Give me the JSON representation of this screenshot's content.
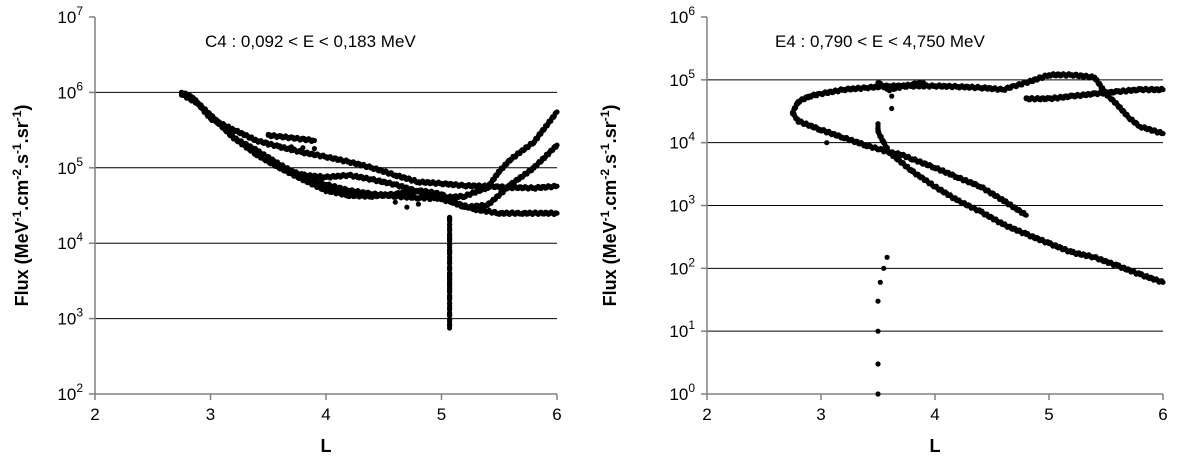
{
  "chart_data": [
    {
      "type": "scatter",
      "annotation": "C4 : 0,092 < E < 0,183 MeV",
      "xlabel": "L",
      "ylabel": "Flux (MeV",
      "ylabel_parts": [
        "Flux (MeV",
        "-1",
        ".cm",
        "-2",
        ".s",
        "-1",
        ".sr",
        "-1",
        ")"
      ],
      "xlim": [
        2,
        6
      ],
      "ylim_exp": [
        2,
        7
      ],
      "y_scale": "log",
      "grid": "horizontal",
      "xticks": [
        "2",
        "3",
        "4",
        "5",
        "6"
      ],
      "yticks": [
        {
          "base": "10",
          "exp": "2"
        },
        {
          "base": "10",
          "exp": "3"
        },
        {
          "base": "10",
          "exp": "4"
        },
        {
          "base": "10",
          "exp": "5"
        },
        {
          "base": "10",
          "exp": "6"
        },
        {
          "base": "10",
          "exp": "7"
        }
      ],
      "series": [
        {
          "points": [
            [
              2.75,
              1000000
            ],
            [
              2.85,
              850000
            ],
            [
              3.0,
              450000
            ],
            [
              3.2,
              320000
            ],
            [
              3.4,
              230000
            ],
            [
              3.6,
              190000
            ],
            [
              3.8,
              160000
            ],
            [
              4.0,
              140000
            ],
            [
              4.2,
              120000
            ],
            [
              4.4,
              100000
            ],
            [
              4.6,
              80000
            ],
            [
              4.8,
              65000
            ],
            [
              5.0,
              62000
            ],
            [
              5.2,
              58000
            ],
            [
              5.4,
              57000
            ],
            [
              5.6,
              55000
            ],
            [
              5.8,
              54000
            ],
            [
              6.0,
              57000
            ]
          ]
        },
        {
          "points": [
            [
              2.75,
              950000
            ],
            [
              2.9,
              700000
            ],
            [
              3.0,
              500000
            ],
            [
              3.2,
              250000
            ],
            [
              3.4,
              170000
            ],
            [
              3.6,
              110000
            ],
            [
              3.8,
              75000
            ],
            [
              4.0,
              60000
            ],
            [
              4.2,
              50000
            ],
            [
              4.4,
              45000
            ],
            [
              4.6,
              42000
            ],
            [
              4.8,
              40000
            ],
            [
              5.0,
              40000
            ],
            [
              5.2,
              42000
            ],
            [
              5.4,
              55000
            ],
            [
              5.5,
              90000
            ],
            [
              5.6,
              130000
            ],
            [
              5.8,
              220000
            ],
            [
              6.0,
              550000
            ]
          ]
        },
        {
          "points": [
            [
              3.0,
              500000
            ],
            [
              3.2,
              250000
            ],
            [
              3.4,
              150000
            ],
            [
              3.6,
              100000
            ],
            [
              3.8,
              70000
            ],
            [
              4.0,
              50000
            ],
            [
              4.2,
              43000
            ],
            [
              4.4,
              42000
            ],
            [
              4.6,
              45000
            ],
            [
              4.8,
              50000
            ],
            [
              5.0,
              45000
            ],
            [
              5.1,
              35000
            ],
            [
              5.3,
              28000
            ],
            [
              5.5,
              25000
            ],
            [
              5.7,
              25000
            ],
            [
              6.0,
              25000
            ]
          ]
        },
        {
          "points": [
            [
              3.4,
              150000
            ],
            [
              3.6,
              100000
            ],
            [
              3.8,
              80000
            ],
            [
              4.0,
              75000
            ],
            [
              4.2,
              80000
            ],
            [
              4.4,
              70000
            ],
            [
              4.6,
              60000
            ],
            [
              4.8,
              48000
            ],
            [
              5.0,
              38000
            ],
            [
              5.1,
              35000
            ],
            [
              5.2,
              30000
            ],
            [
              5.4,
              32000
            ],
            [
              5.6,
              60000
            ],
            [
              5.8,
              100000
            ],
            [
              6.0,
              200000
            ]
          ]
        },
        {
          "points": [
            [
              3.5,
              270000
            ],
            [
              3.6,
              260000
            ],
            [
              3.7,
              250000
            ],
            [
              3.8,
              240000
            ],
            [
              3.9,
              230000
            ]
          ]
        },
        {
          "points": [
            [
              3.5,
              200000
            ],
            [
              3.6,
              195000
            ],
            [
              3.7,
              190000
            ],
            [
              3.8,
              185000
            ],
            [
              3.9,
              180000
            ]
          ]
        },
        {
          "points": [
            [
              4.6,
              35000
            ],
            [
              4.7,
              30000
            ],
            [
              4.8,
              33000
            ],
            [
              4.9,
              38000
            ],
            [
              5.0,
              40000
            ]
          ]
        },
        {
          "points": [
            [
              5.07,
              22000
            ],
            [
              5.07,
              12000
            ],
            [
              5.07,
              8000
            ],
            [
              5.07,
              4000
            ],
            [
              5.07,
              3500
            ],
            [
              5.07,
              3000
            ],
            [
              5.07,
              2500
            ],
            [
              5.07,
              2000
            ],
            [
              5.07,
              750
            ]
          ]
        }
      ]
    },
    {
      "type": "scatter",
      "annotation": "E4 : 0,790 < E < 4,750 MeV",
      "xlabel": "L",
      "ylabel": "Flux (MeV",
      "ylabel_parts": [
        "Flux (MeV",
        "-1",
        ".cm",
        "-2",
        ".s",
        "-1",
        ".sr",
        "-1",
        ")"
      ],
      "xlim": [
        2,
        6
      ],
      "ylim_exp": [
        0,
        6
      ],
      "y_scale": "log",
      "grid": "horizontal",
      "xticks": [
        "2",
        "3",
        "4",
        "5",
        "6"
      ],
      "yticks": [
        {
          "base": "10",
          "exp": "0"
        },
        {
          "base": "10",
          "exp": "1"
        },
        {
          "base": "10",
          "exp": "2"
        },
        {
          "base": "10",
          "exp": "3"
        },
        {
          "base": "10",
          "exp": "4"
        },
        {
          "base": "10",
          "exp": "5"
        },
        {
          "base": "10",
          "exp": "6"
        }
      ],
      "series": [
        {
          "points": [
            [
              2.75,
              30000
            ],
            [
              2.8,
              45000
            ],
            [
              2.9,
              55000
            ],
            [
              3.0,
              60000
            ],
            [
              3.2,
              70000
            ],
            [
              3.4,
              75000
            ],
            [
              3.6,
              80000
            ],
            [
              3.8,
              80000
            ],
            [
              4.0,
              80000
            ],
            [
              4.2,
              78000
            ],
            [
              4.4,
              75000
            ],
            [
              4.6,
              70000
            ],
            [
              4.7,
              80000
            ],
            [
              4.8,
              90000
            ],
            [
              5.0,
              120000
            ],
            [
              5.2,
              120000
            ],
            [
              5.4,
              110000
            ],
            [
              5.5,
              60000
            ],
            [
              5.6,
              40000
            ],
            [
              5.7,
              25000
            ],
            [
              5.8,
              18000
            ],
            [
              6.0,
              14000
            ]
          ]
        },
        {
          "points": [
            [
              2.75,
              30000
            ],
            [
              2.8,
              22000
            ],
            [
              3.0,
              16000
            ],
            [
              3.2,
              12000
            ],
            [
              3.4,
              9000
            ],
            [
              3.5,
              8000
            ],
            [
              3.6,
              7000
            ],
            [
              3.7,
              6500
            ],
            [
              3.8,
              5500
            ],
            [
              4.0,
              4000
            ],
            [
              4.2,
              2800
            ],
            [
              4.4,
              2000
            ],
            [
              4.6,
              1200
            ],
            [
              4.8,
              700
            ]
          ]
        },
        {
          "points": [
            [
              3.5,
              90000
            ],
            [
              3.6,
              70000
            ],
            [
              3.8,
              85000
            ],
            [
              3.9,
              90000
            ]
          ]
        },
        {
          "points": [
            [
              3.5,
              20000
            ],
            [
              3.5,
              15000
            ],
            [
              3.55,
              10000
            ],
            [
              3.6,
              7000
            ],
            [
              3.8,
              3500
            ],
            [
              4.0,
              2000
            ],
            [
              4.2,
              1200
            ],
            [
              4.4,
              800
            ],
            [
              4.6,
              500
            ],
            [
              4.8,
              350
            ],
            [
              5.0,
              250
            ],
            [
              5.2,
              180
            ],
            [
              5.4,
              150
            ],
            [
              5.6,
              110
            ],
            [
              5.8,
              80
            ],
            [
              6.0,
              60
            ]
          ]
        },
        {
          "points": [
            [
              4.8,
              50000
            ],
            [
              5.0,
              50000
            ],
            [
              5.2,
              55000
            ],
            [
              5.4,
              60000
            ],
            [
              5.6,
              65000
            ],
            [
              5.8,
              70000
            ],
            [
              6.0,
              70000
            ]
          ]
        },
        {
          "points": [
            [
              3.05,
              10000
            ],
            [
              3.05,
              15000
            ]
          ]
        },
        {
          "points": [
            [
              3.62,
              35000
            ],
            [
              3.62,
              55000
            ]
          ]
        },
        {
          "points": [
            [
              3.5,
              1
            ],
            [
              3.5,
              3
            ],
            [
              3.5,
              10
            ],
            [
              3.5,
              30
            ],
            [
              3.52,
              60
            ],
            [
              3.55,
              100
            ],
            [
              3.58,
              150
            ]
          ]
        }
      ]
    }
  ]
}
